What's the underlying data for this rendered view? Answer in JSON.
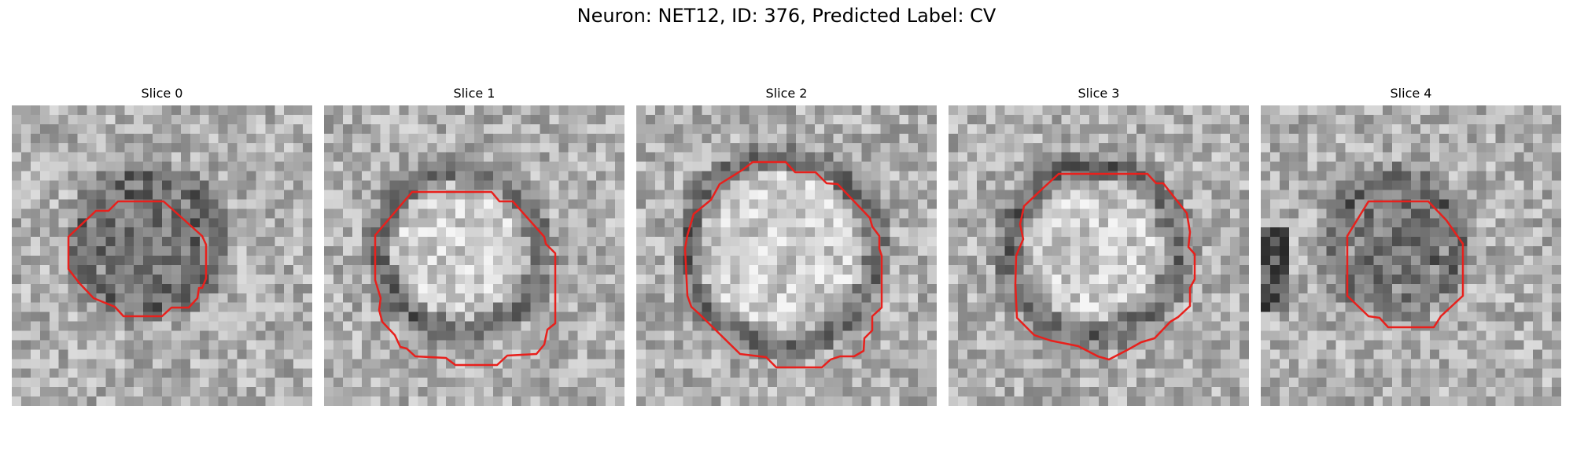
{
  "figure": {
    "title": "Neuron: NET12, ID: 376, Predicted Label: CV"
  },
  "panels": [
    {
      "title": "Slice 0"
    },
    {
      "title": "Slice 1"
    },
    {
      "title": "Slice 2"
    },
    {
      "title": "Slice 3"
    },
    {
      "title": "Slice 4"
    }
  ],
  "colors": {
    "contour": "#e8201c",
    "background": "#ffffff"
  }
}
